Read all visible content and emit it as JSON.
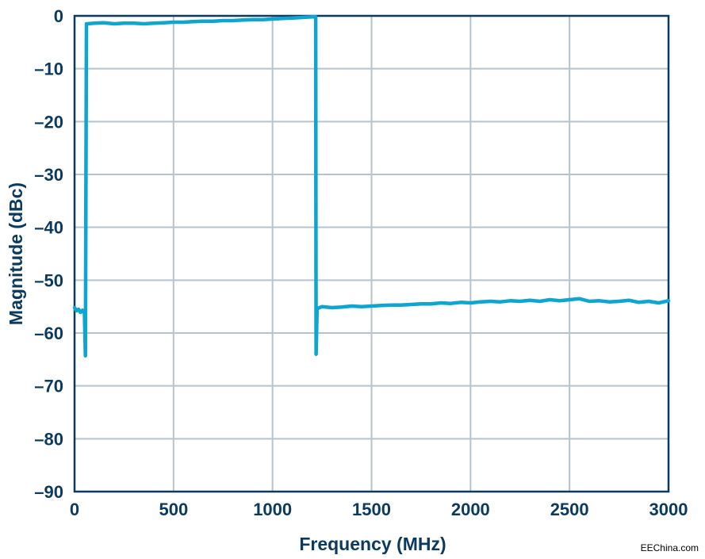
{
  "chart_data": {
    "type": "line",
    "xlabel": "Frequency (MHz)",
    "ylabel": "Magnitude (dBc)",
    "xlim": [
      0,
      3000
    ],
    "ylim": [
      -90,
      0
    ],
    "x_ticks": [
      0,
      500,
      1000,
      1500,
      2000,
      2500,
      3000
    ],
    "x_tick_labels": [
      "0",
      "500",
      "1000",
      "1500",
      "2000",
      "2500",
      "3000"
    ],
    "y_ticks": [
      0,
      -10,
      -20,
      -30,
      -40,
      -50,
      -60,
      -70,
      -80,
      -90
    ],
    "y_tick_labels": [
      "0",
      "–10",
      "–20",
      "–30",
      "–40",
      "–50",
      "–60",
      "–70",
      "–80",
      "–90"
    ],
    "grid": true,
    "series": [
      {
        "color": "#0ea5cf",
        "x": [
          0,
          10,
          20,
          30,
          40,
          50,
          55,
          60,
          65,
          100,
          150,
          200,
          250,
          300,
          350,
          400,
          450,
          500,
          550,
          600,
          650,
          700,
          750,
          800,
          850,
          900,
          950,
          1000,
          1050,
          1100,
          1150,
          1200,
          1218,
          1220,
          1225,
          1230,
          1250,
          1300,
          1350,
          1400,
          1450,
          1500,
          1550,
          1600,
          1650,
          1700,
          1750,
          1800,
          1850,
          1900,
          1950,
          2000,
          2050,
          2100,
          2150,
          2200,
          2250,
          2300,
          2350,
          2400,
          2450,
          2500,
          2550,
          2600,
          2650,
          2700,
          2750,
          2800,
          2850,
          2900,
          2950,
          3000
        ],
        "y": [
          -55.2,
          -55.8,
          -55.5,
          -56.1,
          -55.7,
          -56.2,
          -64.3,
          -1.5,
          -1.5,
          -1.4,
          -1.3,
          -1.5,
          -1.4,
          -1.4,
          -1.5,
          -1.4,
          -1.3,
          -1.2,
          -1.2,
          -1.1,
          -1.0,
          -1.0,
          -0.9,
          -0.9,
          -0.8,
          -0.7,
          -0.7,
          -0.6,
          -0.5,
          -0.4,
          -0.3,
          -0.2,
          -0.2,
          -64.0,
          -55.6,
          -55.3,
          -55.0,
          -55.2,
          -55.1,
          -54.9,
          -55.0,
          -54.9,
          -54.8,
          -54.7,
          -54.7,
          -54.6,
          -54.5,
          -54.5,
          -54.3,
          -54.4,
          -54.2,
          -54.3,
          -54.1,
          -54.0,
          -54.1,
          -53.9,
          -54.0,
          -53.8,
          -54.0,
          -53.7,
          -53.9,
          -53.7,
          -53.5,
          -54.0,
          -53.9,
          -54.1,
          -54.0,
          -53.8,
          -54.2,
          -54.0,
          -54.3,
          -53.9
        ]
      }
    ]
  },
  "watermark": "EEChina.com"
}
